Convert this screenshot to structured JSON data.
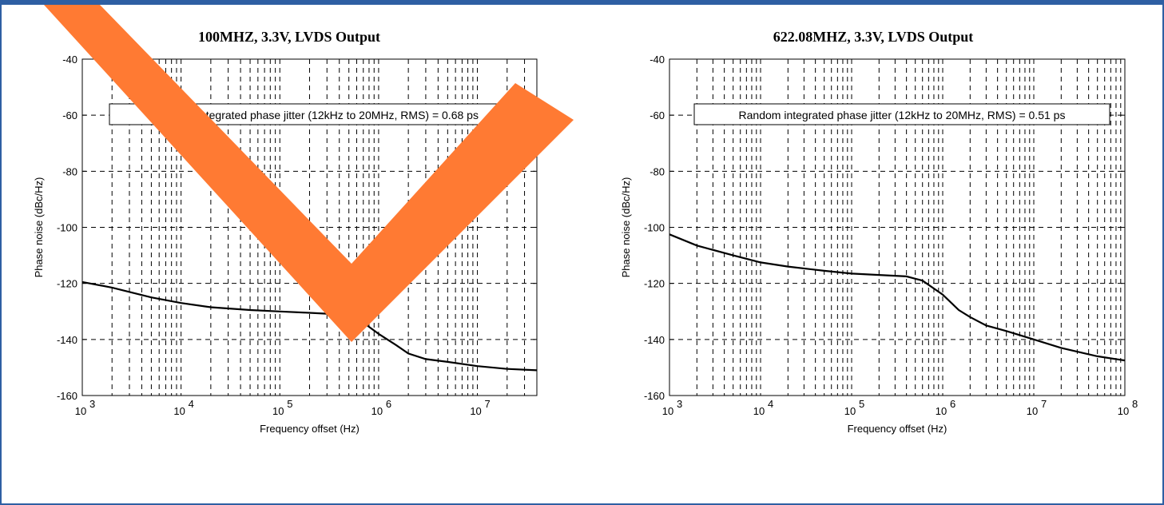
{
  "watermark": {
    "shape": "checkmark",
    "color": "#ff7a33"
  },
  "accent_color": "#2e5fa3",
  "chart_data": [
    {
      "type": "line",
      "title": "100MHZ, 3.3V, LVDS Output",
      "xlabel": "Frequency offset (Hz)",
      "ylabel": "Phase noise (dBc/Hz)",
      "xscale": "log",
      "xlim": [
        1000,
        40000000
      ],
      "ylim": [
        -160,
        -40
      ],
      "yticks": [
        "-40",
        "-60",
        "-80",
        "-100",
        "-120",
        "-140",
        "-160"
      ],
      "xticks": [
        {
          "base": "10",
          "exp": "3"
        },
        {
          "base": "10",
          "exp": "4"
        },
        {
          "base": "10",
          "exp": "5"
        },
        {
          "base": "10",
          "exp": "6"
        },
        {
          "base": "10",
          "exp": "7"
        }
      ],
      "grid": true,
      "annotation": "Random integrated phase jitter (12kHz to 20MHz, RMS) = 0.68 ps",
      "series": [
        {
          "x": [
            1000,
            2000,
            5000,
            10000,
            20000,
            50000,
            100000,
            200000,
            300000,
            500000,
            700000,
            1000000,
            1500000,
            2000000,
            3000000,
            5000000,
            10000000,
            20000000,
            40000000
          ],
          "y": [
            -119.5,
            -121.5,
            -125,
            -127,
            -128.5,
            -129.5,
            -130,
            -130.5,
            -130.8,
            -132,
            -134,
            -138,
            -142,
            -145,
            -147,
            -148,
            -149.5,
            -150.5,
            -151
          ]
        }
      ]
    },
    {
      "type": "line",
      "title": "622.08MHZ, 3.3V, LVDS Output",
      "xlabel": "Frequency offset (Hz)",
      "ylabel": "Phase noise (dBc/Hz)",
      "xscale": "log",
      "xlim": [
        1000,
        100000000
      ],
      "ylim": [
        -160,
        -40
      ],
      "yticks": [
        "-40",
        "-60",
        "-80",
        "-100",
        "-120",
        "-140",
        "-160"
      ],
      "xticks": [
        {
          "base": "10",
          "exp": "3"
        },
        {
          "base": "10",
          "exp": "4"
        },
        {
          "base": "10",
          "exp": "5"
        },
        {
          "base": "10",
          "exp": "6"
        },
        {
          "base": "10",
          "exp": "7"
        },
        {
          "base": "10",
          "exp": "8"
        }
      ],
      "grid": true,
      "annotation": "Random integrated phase jitter (12kHz to 20MHz, RMS) = 0.51 ps",
      "series": [
        {
          "x": [
            1000,
            2000,
            5000,
            10000,
            20000,
            50000,
            100000,
            200000,
            400000,
            600000,
            1000000,
            1500000,
            2000000,
            3000000,
            5000000,
            10000000,
            20000000,
            50000000,
            100000000
          ],
          "y": [
            -102.5,
            -106.5,
            -110,
            -112.5,
            -114,
            -115.5,
            -116.5,
            -117,
            -117.5,
            -119,
            -124,
            -129.5,
            -132,
            -135,
            -137,
            -140,
            -143,
            -146,
            -147.5
          ]
        }
      ]
    }
  ]
}
